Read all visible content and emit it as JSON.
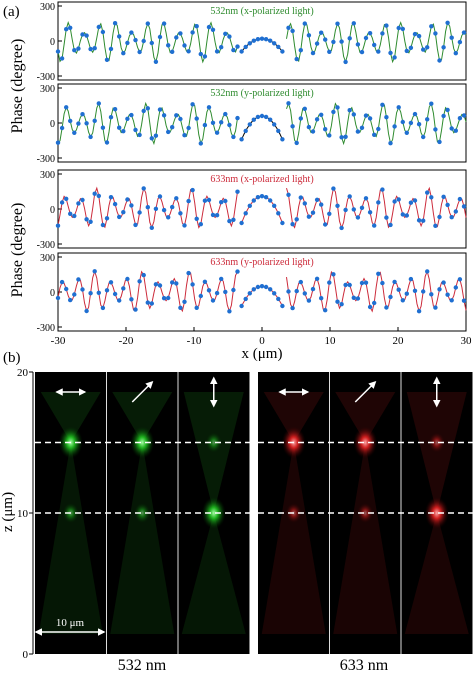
{
  "panel_a_label": "(a)",
  "panel_b_label": "(b)",
  "chart_data": [
    {
      "type": "line",
      "title": "532nm (x-polarized light)",
      "color": "#2e8b2e",
      "marker_color": "#1f6fd1",
      "xlim": [
        -30,
        30
      ],
      "ylim": [
        -300,
        300
      ],
      "yticks": [
        "300",
        "0",
        "-300"
      ],
      "gap_x": [
        -3.5,
        3.5
      ],
      "center_peak_deg": 20,
      "edge_deg": -90,
      "xlabel": "",
      "ylabel": ""
    },
    {
      "type": "line",
      "title": "532nm (y-polarized light)",
      "color": "#2e8b2e",
      "marker_color": "#1f6fd1",
      "xlim": [
        -30,
        30
      ],
      "ylim": [
        -300,
        300
      ],
      "yticks": [
        "300",
        "0",
        "-300"
      ],
      "gap_x": [
        -3.5,
        3.5
      ],
      "center_peak_deg": 60,
      "edge_deg": -140,
      "xlabel": "",
      "ylabel": ""
    },
    {
      "type": "line",
      "title": "633nm (x-polarized light)",
      "color": "#cc2b3b",
      "marker_color": "#1f6fd1",
      "xlim": [
        -30,
        30
      ],
      "ylim": [
        -300,
        300
      ],
      "yticks": [
        "300",
        "0",
        "-300"
      ],
      "gap_x": [
        -3.5,
        3.5
      ],
      "center_peak_deg": 110,
      "edge_deg": -120,
      "xlabel": "",
      "ylabel": ""
    },
    {
      "type": "line",
      "title": "633nm (y-polarized light)",
      "color": "#cc2b3b",
      "marker_color": "#1f6fd1",
      "xlim": [
        -30,
        30
      ],
      "ylim": [
        -300,
        300
      ],
      "yticks": [
        "300",
        "0",
        "-300"
      ],
      "gap_x": [
        -3.5,
        3.5
      ],
      "center_peak_deg": 50,
      "edge_deg": -120,
      "xticks": [
        "-30",
        "-20",
        "-10",
        "0",
        "10",
        "20",
        "30"
      ],
      "xlabel": "x (μm)",
      "ylabel": ""
    }
  ],
  "ylabel_top": "Phase (degree)",
  "ylabel_bottom": "Phase (degree)",
  "field_maps": {
    "zlabel": "z (μm)",
    "zticks": [
      "20",
      "10",
      "0"
    ],
    "focal_z": [
      15,
      10
    ],
    "scale_bar_label": "10 μm",
    "groups": [
      {
        "label": "532 nm",
        "color": "#33e533",
        "panels": [
          {
            "pol": "horizontal",
            "focus_z": 15
          },
          {
            "pol": "diagonal",
            "focus_z": 15
          },
          {
            "pol": "vertical",
            "focus_z": 10
          }
        ]
      },
      {
        "label": "633 nm",
        "color": "#ff2a2a",
        "panels": [
          {
            "pol": "horizontal",
            "focus_z": 15
          },
          {
            "pol": "diagonal",
            "focus_z": 15
          },
          {
            "pol": "vertical",
            "focus_z": 10
          }
        ]
      }
    ]
  }
}
